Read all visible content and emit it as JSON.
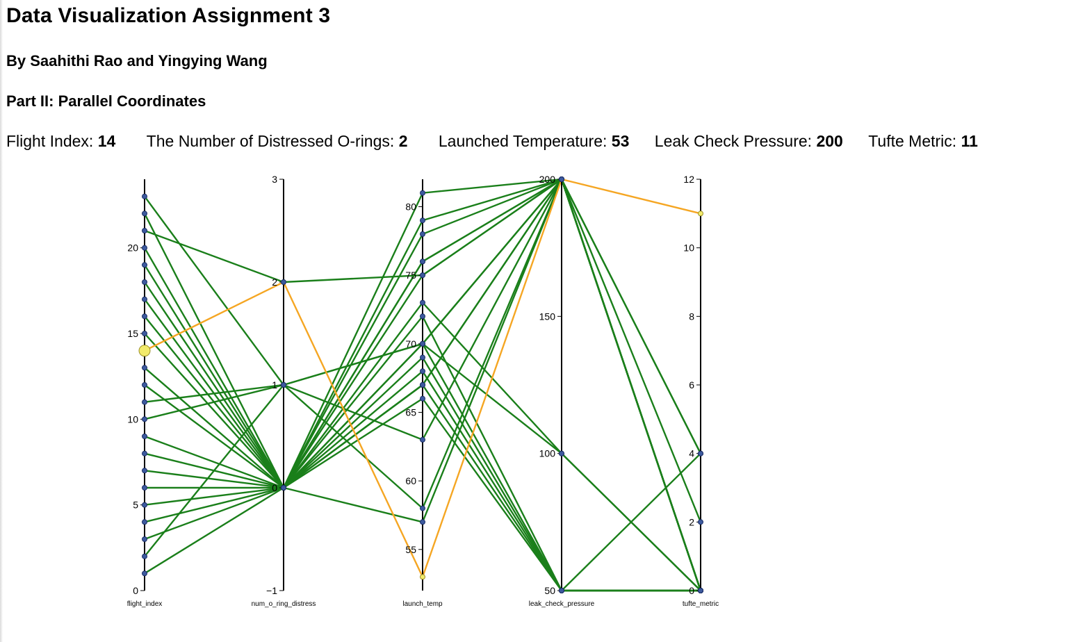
{
  "page": {
    "title": "Data Visualization Assignment 3",
    "authors": "By Saahithi Rao and Yingying Wang",
    "section": "Part II: Parallel Coordinates"
  },
  "selection": {
    "flight_index_label": "Flight Index:",
    "flight_index_value": "14",
    "distress_label": "The Number of Distressed O-rings:",
    "distress_value": "2",
    "temp_label": "Launched Temperature:",
    "temp_value": "53",
    "pressure_label": "Leak Check Pressure:",
    "pressure_value": "200",
    "tufte_label": "Tufte Metric:",
    "tufte_value": "11"
  },
  "colors": {
    "normal_line": "#1a7f1a",
    "highlight_line": "#f5a623",
    "point_fill": "#3d5a9e",
    "highlight_point": "#f2ea6b",
    "axis": "#000000"
  },
  "chart_data": {
    "type": "parallel_coordinates",
    "axes": [
      {
        "key": "flight_index",
        "label": "flight_index",
        "domain": [
          0,
          24
        ],
        "ticks": [
          0,
          5,
          10,
          15,
          20
        ]
      },
      {
        "key": "num_o_ring_distress",
        "label": "num_o_ring_distress",
        "domain": [
          -1,
          3
        ],
        "ticks": [
          -1,
          0,
          1,
          2,
          3
        ]
      },
      {
        "key": "launch_temp",
        "label": "launch_temp",
        "domain": [
          52,
          82
        ],
        "ticks": [
          55,
          60,
          65,
          70,
          75,
          80
        ]
      },
      {
        "key": "leak_check_pressure",
        "label": "leak_check_pressure",
        "domain": [
          50,
          200
        ],
        "ticks": [
          50,
          100,
          150,
          200
        ]
      },
      {
        "key": "tufte_metric",
        "label": "tufte_metric",
        "domain": [
          0,
          12
        ],
        "ticks": [
          0,
          2,
          4,
          6,
          8,
          10,
          12
        ]
      }
    ],
    "records": [
      {
        "flight_index": 1,
        "num_o_ring_distress": 0,
        "launch_temp": 66,
        "leak_check_pressure": 50,
        "tufte_metric": 0
      },
      {
        "flight_index": 2,
        "num_o_ring_distress": 1,
        "launch_temp": 70,
        "leak_check_pressure": 50,
        "tufte_metric": 4
      },
      {
        "flight_index": 3,
        "num_o_ring_distress": 0,
        "launch_temp": 69,
        "leak_check_pressure": 50,
        "tufte_metric": 0
      },
      {
        "flight_index": 4,
        "num_o_ring_distress": 0,
        "launch_temp": 68,
        "leak_check_pressure": 50,
        "tufte_metric": 0
      },
      {
        "flight_index": 5,
        "num_o_ring_distress": 0,
        "launch_temp": 67,
        "leak_check_pressure": 50,
        "tufte_metric": 0
      },
      {
        "flight_index": 6,
        "num_o_ring_distress": 0,
        "launch_temp": 72,
        "leak_check_pressure": 50,
        "tufte_metric": 0
      },
      {
        "flight_index": 7,
        "num_o_ring_distress": 0,
        "launch_temp": 73,
        "leak_check_pressure": 100,
        "tufte_metric": 0
      },
      {
        "flight_index": 8,
        "num_o_ring_distress": 0,
        "launch_temp": 70,
        "leak_check_pressure": 100,
        "tufte_metric": 0
      },
      {
        "flight_index": 9,
        "num_o_ring_distress": 0,
        "launch_temp": 57,
        "leak_check_pressure": 200,
        "tufte_metric": 2
      },
      {
        "flight_index": 10,
        "num_o_ring_distress": 1,
        "launch_temp": 63,
        "leak_check_pressure": 200,
        "tufte_metric": 0
      },
      {
        "flight_index": 11,
        "num_o_ring_distress": 1,
        "launch_temp": 70,
        "leak_check_pressure": 200,
        "tufte_metric": 0
      },
      {
        "flight_index": 12,
        "num_o_ring_distress": 0,
        "launch_temp": 78,
        "leak_check_pressure": 200,
        "tufte_metric": 0
      },
      {
        "flight_index": 13,
        "num_o_ring_distress": 0,
        "launch_temp": 67,
        "leak_check_pressure": 200,
        "tufte_metric": 0
      },
      {
        "flight_index": 14,
        "num_o_ring_distress": 2,
        "launch_temp": 53,
        "leak_check_pressure": 200,
        "tufte_metric": 11
      },
      {
        "flight_index": 15,
        "num_o_ring_distress": 0,
        "launch_temp": 67,
        "leak_check_pressure": 200,
        "tufte_metric": 0
      },
      {
        "flight_index": 16,
        "num_o_ring_distress": 0,
        "launch_temp": 75,
        "leak_check_pressure": 200,
        "tufte_metric": 0
      },
      {
        "flight_index": 17,
        "num_o_ring_distress": 0,
        "launch_temp": 70,
        "leak_check_pressure": 200,
        "tufte_metric": 0
      },
      {
        "flight_index": 18,
        "num_o_ring_distress": 0,
        "launch_temp": 81,
        "leak_check_pressure": 200,
        "tufte_metric": 0
      },
      {
        "flight_index": 19,
        "num_o_ring_distress": 0,
        "launch_temp": 76,
        "leak_check_pressure": 200,
        "tufte_metric": 0
      },
      {
        "flight_index": 20,
        "num_o_ring_distress": 0,
        "launch_temp": 79,
        "leak_check_pressure": 200,
        "tufte_metric": 0
      },
      {
        "flight_index": 21,
        "num_o_ring_distress": 2,
        "launch_temp": 75,
        "leak_check_pressure": 200,
        "tufte_metric": 4
      },
      {
        "flight_index": 22,
        "num_o_ring_distress": 0,
        "launch_temp": 76,
        "leak_check_pressure": 200,
        "tufte_metric": 0
      },
      {
        "flight_index": 23,
        "num_o_ring_distress": 1,
        "launch_temp": 58,
        "leak_check_pressure": 200,
        "tufte_metric": 4
      }
    ],
    "highlighted_flight_index": 14
  }
}
